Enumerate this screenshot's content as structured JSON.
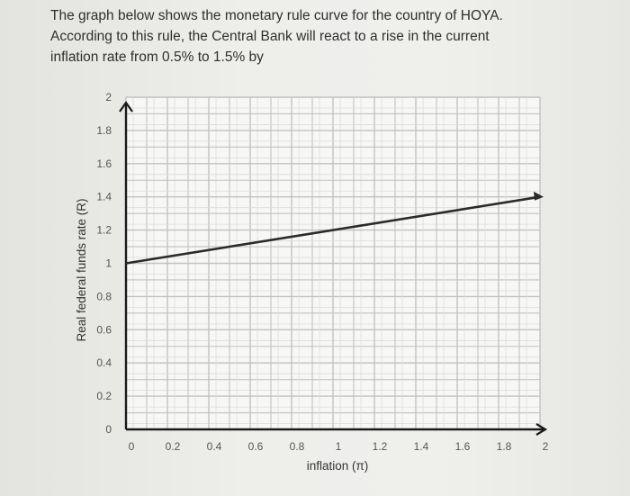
{
  "question": {
    "lines": [
      "The graph below shows the monetary rule curve for the country of HOYA.",
      "According to this rule, the Central Bank will react to a rise in the current",
      "inflation rate from 0.5% to 1.5% by"
    ]
  },
  "chart_data": {
    "type": "line",
    "title": "",
    "xlabel": "inflation (π)",
    "ylabel": "Real federal funds rate (R)",
    "xlim": [
      0,
      2
    ],
    "ylim": [
      0,
      2
    ],
    "x_ticks": [
      "0",
      "0.2",
      "0.4",
      "0.6",
      "0.8",
      "1",
      "1.2",
      "1.4",
      "1.6",
      "1.8",
      "2"
    ],
    "y_ticks": [
      "0",
      "0.2",
      "0.4",
      "0.6",
      "0.8",
      "1",
      "1.2",
      "1.4",
      "1.6",
      "1.8",
      "2"
    ],
    "grid": true,
    "series": [
      {
        "x": [
          0,
          2
        ],
        "y": [
          1.0,
          1.4
        ]
      }
    ],
    "colors": {
      "line": "#2b2b2b",
      "grid": "#c2c2c2",
      "axis": "#1a1a1a"
    }
  }
}
